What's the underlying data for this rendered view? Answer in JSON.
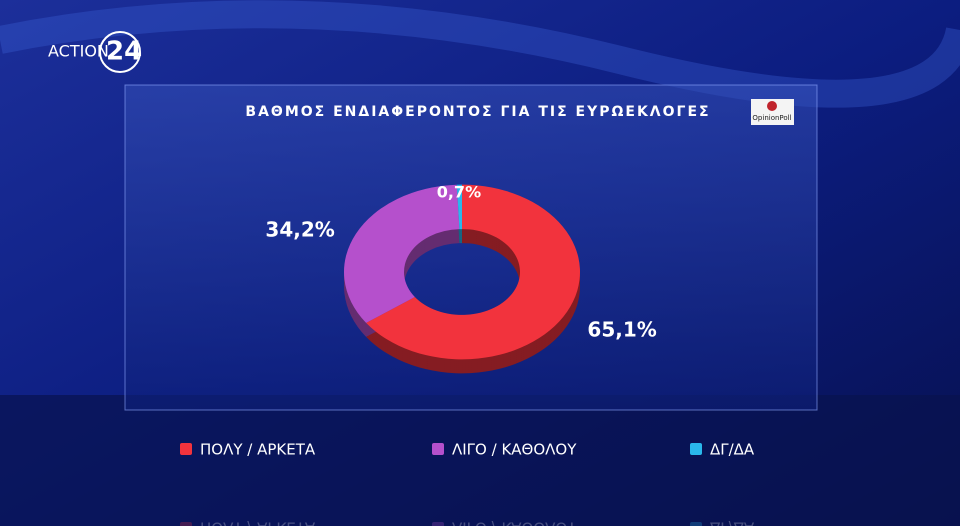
{
  "channel_logo": {
    "name": "ACTION",
    "number": "24"
  },
  "source": "OpinionPoll",
  "chart_data": {
    "type": "pie",
    "donut": true,
    "title": "ΒΑΘΜΟΣ ΕΝΔΙΑΦΕΡΟΝΤΟΣ ΓΙΑ ΤΙΣ ΕΥΡΩΕΚΛΟΓΕΣ",
    "categories": [
      "ΠΟΛΥ / ΑΡΚΕΤΑ",
      "ΛΙΓΟ / ΚΑΘΟΛΟΥ",
      "ΔΓ/ΔΑ"
    ],
    "values": [
      65.1,
      34.2,
      0.7
    ],
    "value_labels": [
      "65,1%",
      "34,2%",
      "0,7%"
    ],
    "colors": [
      "#f2333d",
      "#b550cc",
      "#2ab8ec"
    ],
    "legend": "bottom"
  }
}
